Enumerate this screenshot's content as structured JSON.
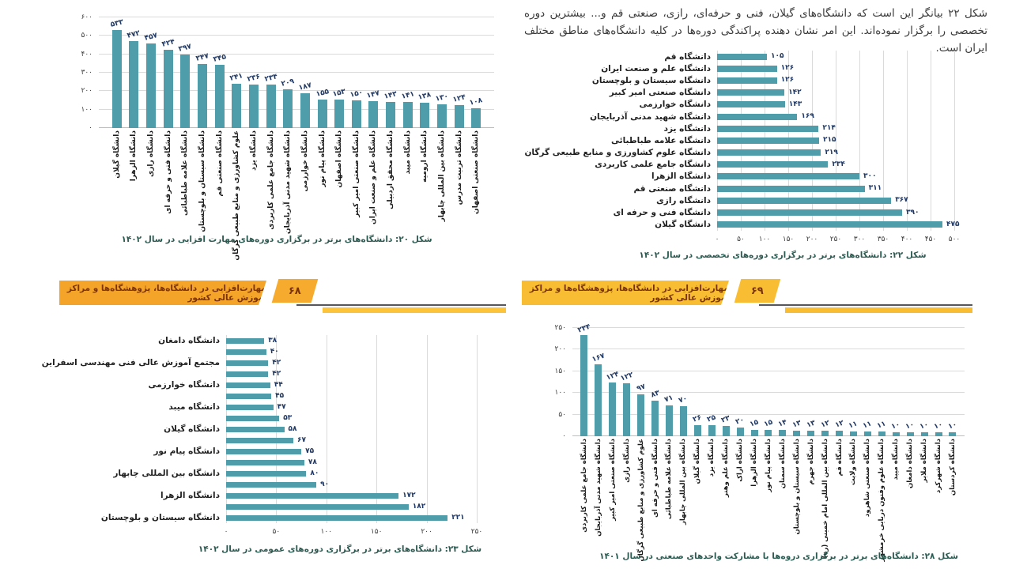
{
  "page": {
    "paragraph": "شکل ۲۲ بیانگر این است که دانشگاه‌های گیلان، فنی و حرفه‌ای، رازی، صنعتی قم و... بیشترین دوره تخصصی را برگزار نموده‌اند. این امر نشان دهنده پراکندگی دوره‌ها در کلیه دانشگاه‌های مناطق مختلف ایران است.",
    "banners": [
      {
        "text": "مهارت‌افزایی در دانشگاه‌ها، پژوهشگاه‌ها و مراکز آموزش عالی کشور",
        "page_number": "۶۸",
        "bar_color": "#f5a42a",
        "num_color": "#f7ab2e",
        "strip_color": "#fbc43a"
      },
      {
        "text": "مهارت‌افزایی در دانشگاه‌ها، پژوهشگاه‌ها و مراکز آموزش عالی کشور",
        "page_number": "۶۹",
        "bar_color": "#f9bd33",
        "num_color": "#f9bd33",
        "strip_color": "#f9bd33"
      }
    ]
  },
  "colors": {
    "bar": "#4f9dab",
    "grid": "#dadada",
    "value_label": "#1f3864",
    "caption": "#2a5a50",
    "banner_text": "#7a330e"
  },
  "chart_data": [
    {
      "id": "fig20",
      "type": "bar",
      "orientation": "vertical",
      "title": "شکل ۲۰: دانشگاه‌های برتر در برگزاری دوره‌های مهارت افزایی در سال ۱۴۰۲",
      "categories": [
        "دانشگاه گیلان",
        "دانشگاه الزهرا",
        "دانشگاه رازی",
        "دانشگاه فنی و حرفه ای",
        "دانشگاه علامه طباطبائی",
        "دانشگاه سیستان و بلوچستان",
        "دانشگاه صنعتی قم",
        "علوم کشاورزی و منابع طبیعی گرگان",
        "دانشگاه یزد",
        "دانشگاه جامع علمی کاربردی",
        "دانشگاه شهید مدنی آذربایجان",
        "دانشگاه خوارزمی",
        "دانشگاه پیام نور",
        "دانشگاه اصفهان",
        "دانشگاه صنعتی امیر کبیر",
        "دانشگاه علم و صنعت ایران",
        "دانشگاه محقق اردبیلی",
        "دانشگاه میبد",
        "دانشگاه ارومیه",
        "دانشگاه بین المللی چابهار",
        "دانشگاه تربیت مدرس",
        "دانشگاه صنعتی اصفهان"
      ],
      "values": [
        533,
        472,
        457,
        424,
        397,
        347,
        345,
        241,
        236,
        234,
        209,
        187,
        155,
        153,
        150,
        147,
        143,
        141,
        138,
        130,
        124,
        108
      ],
      "ylim": [
        0,
        600
      ],
      "tick_step": 100,
      "grid": true
    },
    {
      "id": "fig22",
      "type": "bar",
      "orientation": "horizontal",
      "title": "شکل ۲۲: دانشگاه‌های برتر در برگزاری دوره‌های تخصصی در سال ۱۴۰۲",
      "categories": [
        "دانشگاه قم",
        "دانشگاه علم و صنعت ایران",
        "دانشگاه سیستان و بلوچستان",
        "دانشگاه صنعتی امیر کبیر",
        "دانشگاه خوارزمی",
        "دانشگاه شهید مدنی آذربایجان",
        "دانشگاه یزد",
        "دانشگاه علامه طباطبائی",
        "دانشگاه علوم کشاورزی و منابع طبیعی گرگان",
        "دانشگاه جامع علمی کاربردی",
        "دانشگاه الزهرا",
        "دانشگاه صنعتی قم",
        "دانشگاه رازی",
        "دانشگاه فنی و حرفه ای",
        "دانشگاه گیلان"
      ],
      "values": [
        105,
        126,
        126,
        142,
        143,
        169,
        214,
        215,
        219,
        234,
        300,
        311,
        367,
        390,
        475
      ],
      "xlim": [
        0,
        500
      ],
      "tick_step": 50,
      "grid": true
    },
    {
      "id": "fig23",
      "type": "bar",
      "orientation": "horizontal",
      "title": "شکل ۲۳: دانشگاه‌های برتر در برگزاری دوره‌های عمومی در سال ۱۴۰۲",
      "categories": [
        "دانشگاه دامغان",
        "",
        "مجتمع آموزش عالی فنی مهندسی اسفراین",
        "",
        "دانشگاه خوارزمی",
        "",
        "دانشگاه میبد",
        "",
        "دانشگاه گیلان",
        "",
        "دانشگاه پیام نور",
        "",
        "دانشگاه بین المللی چابهار",
        "",
        "دانشگاه الزهرا",
        "",
        "دانشگاه سیستان و بلوچستان"
      ],
      "values": [
        38,
        40,
        42,
        42,
        44,
        45,
        47,
        53,
        58,
        67,
        75,
        78,
        80,
        90,
        172,
        182,
        221
      ],
      "xlim": [
        0,
        250
      ],
      "tick_step": 50,
      "grid": true
    },
    {
      "id": "fig28",
      "type": "bar",
      "orientation": "vertical",
      "title": "شکل ۲۸: دانشگاه‌های برتر در برگزاری دروه‌ها با مشارکت واحدهای صنعتی در سال ۱۴۰۱",
      "categories": [
        "دانشگاه جامع علمی کاربردی",
        "دانشگاه شهید مدنی آذربایجان",
        "دانشگاه صنعتی امیر کبیر",
        "دانشگاه رازی",
        "علوم کشاورزی و منابع طبیعی گرگان",
        "دانشگاه فنی و حرفه ای",
        "دانشگاه علامه طباطبائی",
        "دانشگاه بین المللی چابهار",
        "دانشگاه گیلان",
        "دانشگاه یزد",
        "دانشگاه علم وهنر",
        "دانشگاه اراک",
        "دانشگاه الزهرا",
        "دانشگاه پیام نور",
        "دانشگاه سمنان",
        "دانشگاه سیستان و بلوچستان",
        "دانشگاه جهرم",
        "دانشگاه بین المللی امام خمینی (ره)",
        "دانشگاه قم",
        "دانشگاه ولایت",
        "دانشگاه صنعتی شاهرود",
        "دانشگاه علوم وفنون دریایی خرمشهر",
        "دانشگاه میبد",
        "دانشگاه دامغان",
        "دانشگاه ملایر",
        "دانشگاه شهرکرد",
        "دانشگاه کردستان"
      ],
      "values": [
        234,
        167,
        124,
        122,
        97,
        83,
        71,
        70,
        26,
        25,
        23,
        20,
        15,
        15,
        14,
        13,
        13,
        12,
        12,
        11,
        11,
        11,
        10,
        10,
        10,
        10,
        10
      ],
      "ylim": [
        0,
        250
      ],
      "tick_step": 50,
      "grid": true
    }
  ]
}
